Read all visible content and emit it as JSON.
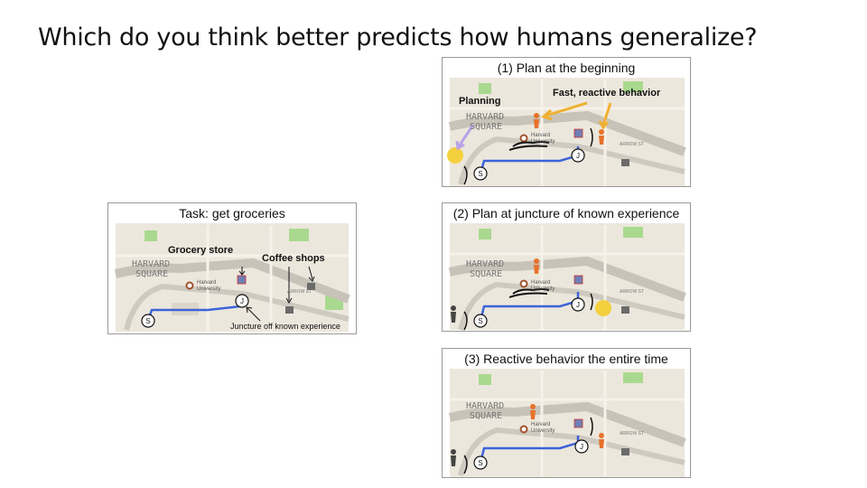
{
  "slide": {
    "title": "Which do you think better predicts how humans generalize?"
  },
  "task_panel": {
    "caption": "Task: get groceries",
    "grocery_label": "Grocery store",
    "coffee_label": "Coffee shops",
    "juncture_label": "Juncture off known experience"
  },
  "map_text": {
    "harvard": "HARVARD",
    "square": "SQUARE",
    "university_1": "Harvard",
    "university_2": "University",
    "arrow_st": "ARROW ST",
    "start_marker": "S",
    "juncture_marker": "J"
  },
  "option1": {
    "caption": "(1) Plan at the beginning",
    "planning_label": "Planning",
    "reactive_label": "Fast, reactive behavior"
  },
  "option2": {
    "caption": "(2) Plan at juncture of known experience"
  },
  "option3": {
    "caption": "(3) Reactive behavior the entire time"
  },
  "colors": {
    "route": "#3d63d8",
    "planning_arrow": "#b9a3e8",
    "reactive_arrow": "#f0b030",
    "walker": "#e8722a",
    "map_bg": "#ece7dc",
    "park": "#a9d98f"
  }
}
